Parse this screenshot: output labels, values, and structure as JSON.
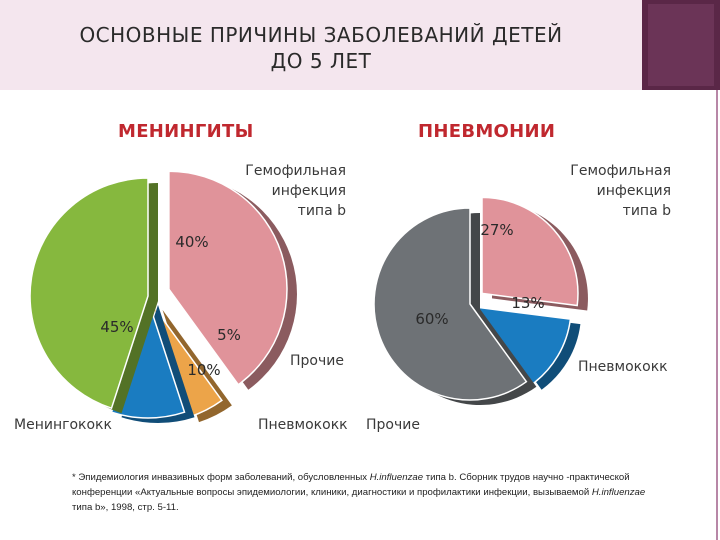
{
  "title": {
    "line1": "ОСНОВНЫЕ ПРИЧИНЫ ЗАБОЛЕВАНИЙ ДЕТЕЙ",
    "line2": "ДО 5 ЛЕТ"
  },
  "colors": {
    "header_bg": "#f4e6ee",
    "corner": "#5a2747",
    "pink": "#e0939a",
    "green": "#86b83e",
    "orange": "#eca449",
    "blue": "#1a7cc1",
    "gray": "#6e7276",
    "title_red": "#c0282f"
  },
  "chart_data": [
    {
      "type": "pie",
      "title": "МЕНИНГИТЫ",
      "slices": [
        {
          "label": "Гемофильная инфекция типа b",
          "value": 40,
          "display": "40%",
          "color": "#e0939a"
        },
        {
          "label": "Прочие",
          "value": 5,
          "display": "5%",
          "color": "#eca449"
        },
        {
          "label": "Пневмококк",
          "value": 10,
          "display": "10%",
          "color": "#1a7cc1"
        },
        {
          "label": "Менингококк",
          "value": 45,
          "display": "45%",
          "color": "#86b83e"
        }
      ]
    },
    {
      "type": "pie",
      "title": "ПНЕВМОНИИ",
      "slices": [
        {
          "label": "Гемофильная инфекция типа b",
          "value": 27,
          "display": "27%",
          "color": "#e0939a"
        },
        {
          "label": "Пневмококк",
          "value": 13,
          "display": "13%",
          "color": "#1a7cc1"
        },
        {
          "label": "Прочие",
          "value": 60,
          "display": "60%",
          "color": "#6e7276"
        }
      ]
    }
  ],
  "footnote": {
    "star": "*",
    "p1": " Эпидемиология инвазивных форм заболеваний, обусловленных ",
    "i1": "H.influenzae",
    "p2": " типа b. Сборник трудов научно -практической конференции «Актуальные вопросы эпидемиологии, клиники, диагностики и профилактики инфекции, вызываемой ",
    "i2": "H.influenzae",
    "p3": " типа b», 1998, стр. 5-11."
  }
}
